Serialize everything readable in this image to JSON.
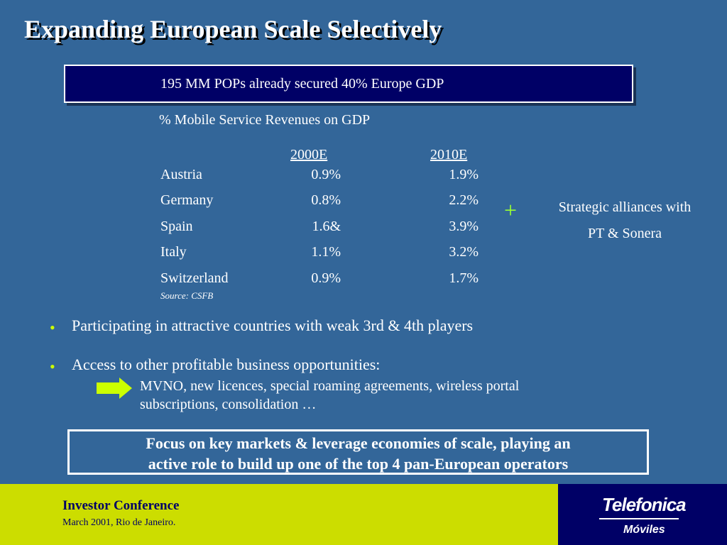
{
  "title": "Expanding European Scale Selectively",
  "headline": "195 MM POPs already secured 40% Europe GDP",
  "table": {
    "title": "% Mobile Service Revenues on GDP",
    "columns": [
      "2000E",
      "2010E"
    ],
    "rows": [
      {
        "country": "Austria",
        "v2000": "0.9%",
        "v2010": "1.9%"
      },
      {
        "country": "Germany",
        "v2000": "0.8%",
        "v2010": "2.2%"
      },
      {
        "country": "Spain",
        "v2000": "1.6&",
        "v2010": "3.9%"
      },
      {
        "country": "Italy",
        "v2000": "1.1%",
        "v2010": "3.2%"
      },
      {
        "country": "Switzerland",
        "v2000": "0.9%",
        "v2010": "1.7%"
      }
    ],
    "source": "Source: CSFB"
  },
  "plus_sign": "+",
  "alliances": {
    "line1": "Strategic alliances with",
    "line2": "PT & Sonera"
  },
  "bullets": [
    {
      "marker": "•",
      "text": "Participating in attractive countries with weak 3rd & 4th players"
    },
    {
      "marker": "•",
      "text": "Access to other profitable business opportunities:"
    }
  ],
  "sub_point": {
    "line1": "MVNO, new licences, special roaming agreements, wireless portal",
    "line2": "subscriptions, consolidation …"
  },
  "focus": {
    "line1": "Focus on key markets & leverage economies of  scale, playing an",
    "line2": "active role to build up one of  the top 4 pan-European operators"
  },
  "footer": {
    "conference": "Investor Conference",
    "date_place": "March 2001, Rio de Janeiro.",
    "logo_main": "Telefonica",
    "logo_sub": "Móviles"
  },
  "colors": {
    "background": "#336699",
    "header_box": "#000066",
    "footer_left": "#ccdd00",
    "footer_right": "#000066",
    "arrow": "#ccff00",
    "plus": "#99ff33"
  }
}
